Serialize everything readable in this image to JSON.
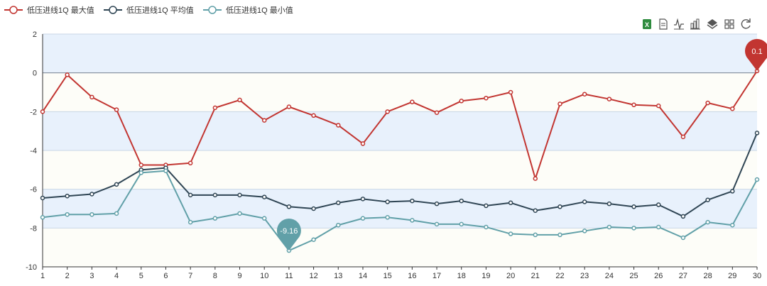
{
  "chart_data": {
    "type": "line",
    "title": "",
    "xlabel": "",
    "ylabel": "",
    "categories": [
      "1",
      "2",
      "3",
      "4",
      "5",
      "6",
      "7",
      "8",
      "9",
      "10",
      "11",
      "12",
      "13",
      "14",
      "15",
      "16",
      "17",
      "18",
      "19",
      "20",
      "21",
      "22",
      "23",
      "24",
      "25",
      "26",
      "27",
      "28",
      "29",
      "30"
    ],
    "ylim": [
      -10,
      2
    ],
    "yticks": [
      "2",
      "0",
      "-2",
      "-4",
      "-6",
      "-8",
      "-10"
    ],
    "grid": true,
    "legend_position": "top-left",
    "series": [
      {
        "name": "低压进线1Q 最大值",
        "color": "#c23531",
        "values": [
          -2.0,
          -0.1,
          -1.25,
          -1.9,
          -4.75,
          -4.75,
          -4.65,
          -1.8,
          -1.4,
          -2.45,
          -1.75,
          -2.2,
          -2.7,
          -3.65,
          -2.0,
          -1.5,
          -2.05,
          -1.45,
          -1.3,
          -1.0,
          -5.45,
          -1.6,
          -1.1,
          -1.35,
          -1.65,
          -1.7,
          -3.3,
          -1.55,
          -1.85,
          0.1
        ]
      },
      {
        "name": "低压进线1Q 平均值",
        "color": "#2f4554",
        "values": [
          -6.45,
          -6.35,
          -6.25,
          -5.75,
          -5.0,
          -4.9,
          -6.3,
          -6.3,
          -6.3,
          -6.4,
          -6.9,
          -7.0,
          -6.7,
          -6.5,
          -6.65,
          -6.6,
          -6.75,
          -6.6,
          -6.85,
          -6.7,
          -7.1,
          -6.9,
          -6.65,
          -6.75,
          -6.9,
          -6.8,
          -7.4,
          -6.55,
          -6.1,
          -3.1
        ]
      },
      {
        "name": "低压进线1Q 最小值",
        "color": "#61a0a8",
        "values": [
          -7.45,
          -7.3,
          -7.3,
          -7.25,
          -5.15,
          -5.05,
          -7.7,
          -7.5,
          -7.25,
          -7.5,
          -9.16,
          -8.6,
          -7.85,
          -7.5,
          -7.45,
          -7.6,
          -7.8,
          -7.8,
          -7.95,
          -8.3,
          -8.35,
          -8.35,
          -8.15,
          -7.95,
          -8.0,
          -7.95,
          -8.5,
          -7.7,
          -7.85,
          -5.5
        ]
      }
    ],
    "markers": [
      {
        "series": 2,
        "index": 10,
        "label": "-9.16",
        "color": "#61a0a8"
      },
      {
        "series": 0,
        "index": 29,
        "label": "0.1",
        "color": "#c23531"
      }
    ]
  },
  "toolbox": {
    "icons": [
      "excel-icon",
      "data-view-icon",
      "line-chart-icon",
      "bar-chart-icon",
      "stack-icon",
      "tiled-icon",
      "restore-icon"
    ]
  }
}
